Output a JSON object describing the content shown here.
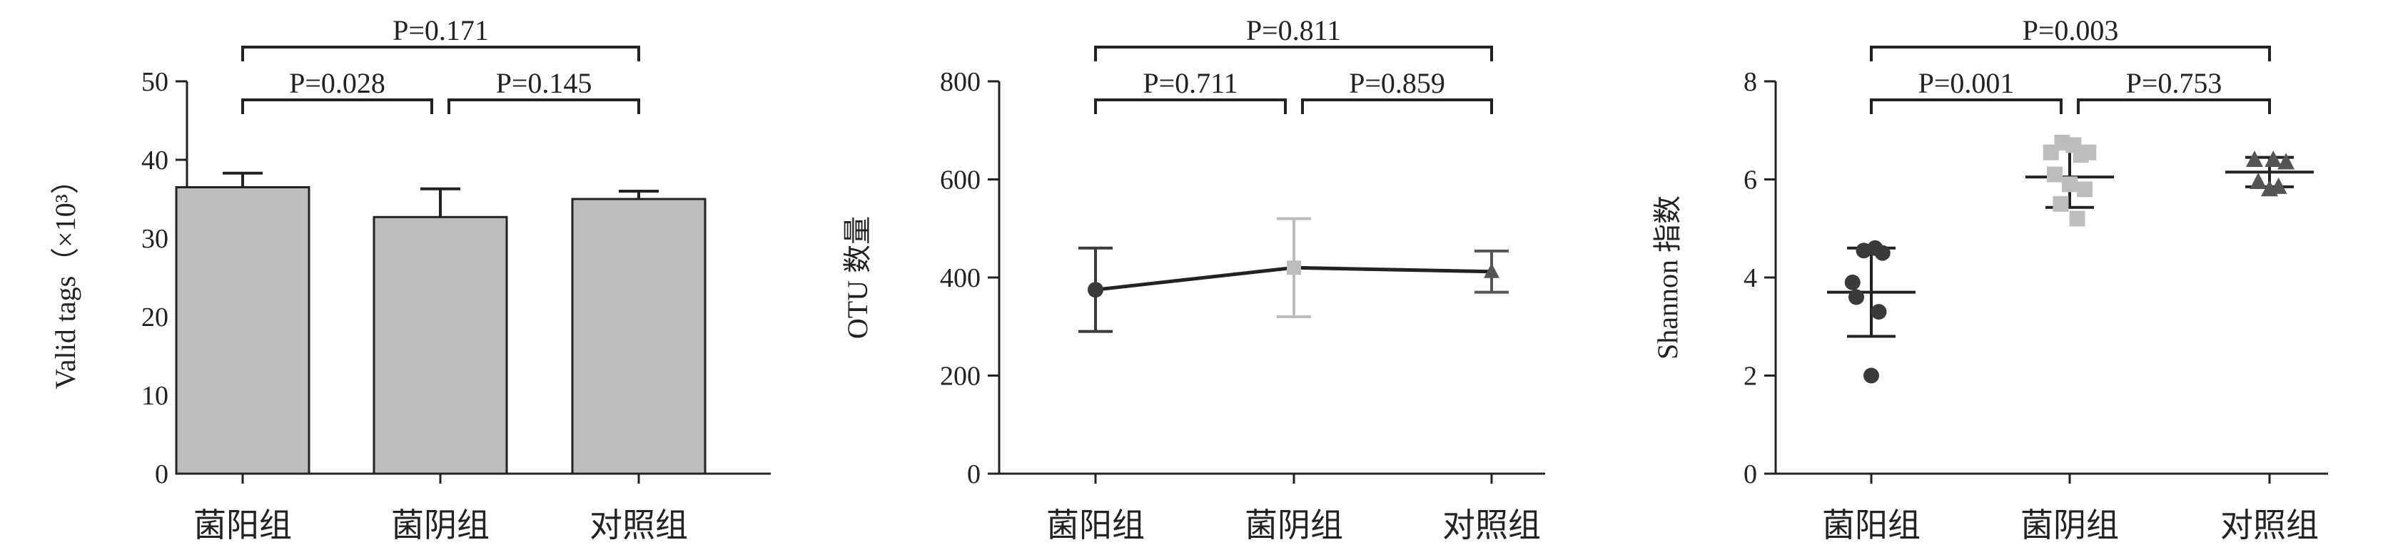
{
  "chart_data": [
    {
      "type": "bar",
      "categories": [
        "菌阳组",
        "菌阴组",
        "对照组"
      ],
      "values": [
        36.5,
        32.7,
        35.0
      ],
      "errors": [
        1.8,
        3.6,
        1.0
      ],
      "ylabel": "Valid tags（×10³）",
      "ylim": [
        0,
        50
      ],
      "yticks": [
        0,
        10,
        20,
        30,
        40,
        50
      ],
      "bar_color": "#bdbdbd",
      "comparisons": [
        {
          "from": 0,
          "to": 1,
          "label": "P=0.028",
          "level": 1
        },
        {
          "from": 1,
          "to": 2,
          "label": "P=0.145",
          "level": 1
        },
        {
          "from": 0,
          "to": 2,
          "label": "P=0.171",
          "level": 2
        }
      ]
    },
    {
      "type": "line",
      "categories": [
        "菌阳组",
        "菌阴组",
        "对照组"
      ],
      "values": [
        375,
        420,
        412
      ],
      "errors": [
        85,
        100,
        42
      ],
      "ylabel": "OTU 数量",
      "ylim": [
        0,
        800
      ],
      "yticks": [
        0,
        200,
        400,
        600,
        800
      ],
      "point_colors": [
        "#3a3a3a",
        "#bdbdbd",
        "#555555"
      ],
      "comparisons": [
        {
          "from": 0,
          "to": 1,
          "label": "P=0.711",
          "level": 1
        },
        {
          "from": 1,
          "to": 2,
          "label": "P=0.859",
          "level": 1
        },
        {
          "from": 0,
          "to": 2,
          "label": "P=0.811",
          "level": 2
        }
      ]
    },
    {
      "type": "scatter",
      "categories": [
        "菌阳组",
        "菌阴组",
        "对照组"
      ],
      "ylabel": "Shannon 指数",
      "ylim": [
        0,
        8
      ],
      "yticks": [
        0,
        2,
        4,
        6,
        8
      ],
      "groups": [
        {
          "mean": 3.7,
          "sd": 0.9,
          "marker": "circle",
          "color": "#3a3a3a",
          "points": [
            [
              -0.25,
              3.9
            ],
            [
              0.05,
              4.6
            ],
            [
              -0.1,
              4.55
            ],
            [
              0.15,
              4.5
            ],
            [
              -0.2,
              3.6
            ],
            [
              0.1,
              3.3
            ],
            [
              0.0,
              2.0
            ]
          ]
        },
        {
          "mean": 6.05,
          "sd": 0.62,
          "marker": "square",
          "color": "#bdbdbd",
          "points": [
            [
              -0.25,
              6.55
            ],
            [
              -0.1,
              6.75
            ],
            [
              0.05,
              6.7
            ],
            [
              0.15,
              6.5
            ],
            [
              0.25,
              6.55
            ],
            [
              -0.2,
              6.1
            ],
            [
              0.0,
              5.9
            ],
            [
              0.2,
              5.8
            ],
            [
              -0.12,
              5.5
            ],
            [
              0.1,
              5.2
            ]
          ]
        },
        {
          "mean": 6.15,
          "sd": 0.3,
          "marker": "triangle",
          "color": "#555555",
          "points": [
            [
              -0.2,
              6.4
            ],
            [
              0.05,
              6.4
            ],
            [
              0.22,
              6.35
            ],
            [
              -0.15,
              5.95
            ],
            [
              0.12,
              5.85
            ],
            [
              0.0,
              5.8
            ]
          ]
        }
      ],
      "comparisons": [
        {
          "from": 0,
          "to": 1,
          "label": "P=0.001",
          "level": 1
        },
        {
          "from": 1,
          "to": 2,
          "label": "P=0.753",
          "level": 1
        },
        {
          "from": 0,
          "to": 2,
          "label": "P=0.003",
          "level": 2
        }
      ]
    }
  ]
}
